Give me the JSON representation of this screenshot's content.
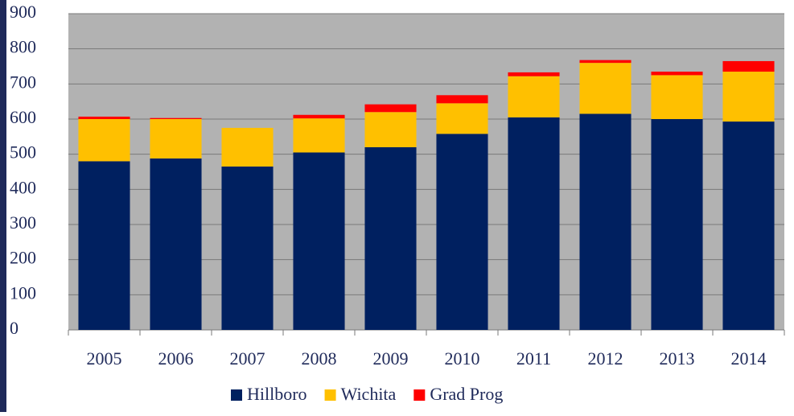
{
  "chart_data": {
    "type": "stacked_bar",
    "categories": [
      "2005",
      "2006",
      "2007",
      "2008",
      "2009",
      "2010",
      "2011",
      "2012",
      "2013",
      "2014"
    ],
    "series": [
      {
        "name": "Hillboro",
        "color": "#002060",
        "values": [
          480,
          488,
          465,
          505,
          520,
          558,
          605,
          615,
          600,
          593
        ]
      },
      {
        "name": "Wichita",
        "color": "#ffc000",
        "values": [
          120,
          112,
          110,
          97,
          100,
          87,
          117,
          145,
          125,
          142
        ]
      },
      {
        "name": "Grad Prog",
        "color": "#ff0000",
        "values": [
          7,
          3,
          0,
          10,
          22,
          23,
          11,
          8,
          10,
          30
        ]
      }
    ],
    "ylim": [
      0,
      900
    ],
    "yticks": [
      0,
      100,
      200,
      300,
      400,
      500,
      600,
      700,
      800,
      900
    ],
    "grid": true,
    "legend": "bottom"
  }
}
